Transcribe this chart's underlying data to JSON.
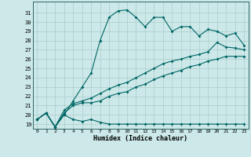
{
  "xlabel": "Humidex (Indice chaleur)",
  "bg_color": "#cce8e8",
  "grid_color": "#aacccc",
  "line_color": "#006666",
  "xlim": [
    -0.5,
    23.5
  ],
  "ylim": [
    18.5,
    32.2
  ],
  "xticks": [
    0,
    1,
    2,
    3,
    4,
    5,
    6,
    7,
    8,
    9,
    10,
    11,
    12,
    13,
    14,
    15,
    16,
    17,
    18,
    19,
    20,
    21,
    22,
    23
  ],
  "yticks": [
    19,
    20,
    21,
    22,
    23,
    24,
    25,
    26,
    27,
    28,
    29,
    30,
    31
  ],
  "series_jagged": [
    19.5,
    20.2,
    18.7,
    20.0,
    19.5,
    19.3,
    19.5,
    19.2,
    19.0,
    19.0,
    19.0,
    19.0,
    19.0,
    19.0,
    19.0,
    19.0,
    19.0,
    19.0,
    19.0,
    19.0,
    19.0,
    19.0,
    19.0,
    19.0
  ],
  "series_peak": [
    19.5,
    20.2,
    18.7,
    20.0,
    21.5,
    23.0,
    24.5,
    28.0,
    30.5,
    31.2,
    31.3,
    30.5,
    29.5,
    30.5,
    30.5,
    29.0,
    29.5,
    29.5,
    28.5,
    29.2,
    29.0,
    28.5,
    28.8,
    27.5
  ],
  "series_mid": [
    19.5,
    20.2,
    18.7,
    20.5,
    21.2,
    21.5,
    21.8,
    22.3,
    22.8,
    23.2,
    23.5,
    24.0,
    24.5,
    25.0,
    25.5,
    25.8,
    26.0,
    26.3,
    26.5,
    26.8,
    27.8,
    27.3,
    27.2,
    27.0
  ],
  "series_low": [
    19.5,
    20.2,
    18.7,
    20.2,
    21.0,
    21.3,
    21.3,
    21.5,
    22.0,
    22.3,
    22.5,
    23.0,
    23.3,
    23.8,
    24.2,
    24.5,
    24.8,
    25.2,
    25.4,
    25.8,
    26.0,
    26.3,
    26.3,
    26.3
  ]
}
